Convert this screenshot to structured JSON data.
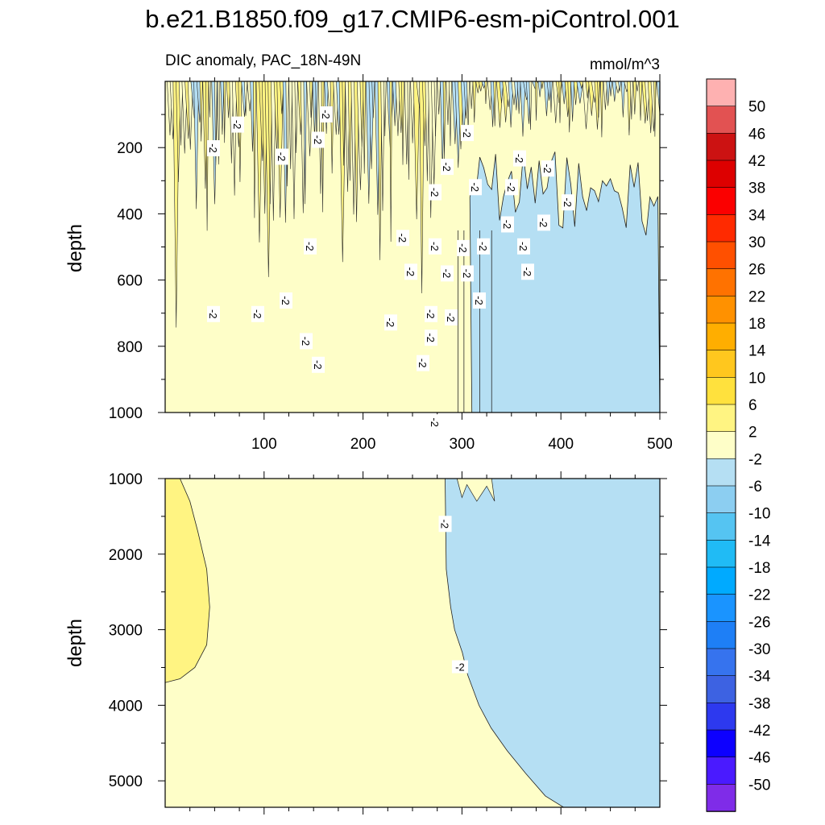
{
  "chart_data": [
    {
      "type": "contour",
      "title": "b.e21.B1850.f09_g17.CMIP6-esm-piControl.001",
      "subtitle_left": "DIC anomaly, PAC_18N-49N",
      "subtitle_right": "mmol/m^3",
      "xlabel": "",
      "ylabel": "depth",
      "xlim": [
        0,
        500
      ],
      "ylim": [
        1000,
        0
      ],
      "x_ticks": [
        100,
        200,
        300,
        400,
        500
      ],
      "x_tick_labels": [
        "100",
        "200",
        "300",
        "400",
        "500"
      ],
      "y_ticks": [
        200,
        400,
        600,
        800,
        1000
      ],
      "y_tick_labels": [
        "200",
        "400",
        "600",
        "800",
        "1000"
      ],
      "contour_label": "-2",
      "contour_label_count": 37,
      "regions": [
        {
          "level_range": "2 to 6",
          "description": "patchy positive anomalies in upper 300 m across most of record"
        },
        {
          "level_range": "-2 to 2",
          "description": "near-zero background dominating x=0..300 below ~300 m"
        },
        {
          "level_range": "-6 to -2",
          "description": "negative anomaly filling x>~310 below ~300 m"
        }
      ]
    },
    {
      "type": "contour",
      "xlabel": "",
      "ylabel": "depth",
      "xlim": [
        0,
        500
      ],
      "ylim": [
        1000,
        5350
      ],
      "y_ticks": [
        1000,
        2000,
        3000,
        4000,
        5000
      ],
      "y_tick_labels": [
        "1000",
        "2000",
        "3000",
        "4000",
        "5000"
      ],
      "contour_label": "-2",
      "contour_label_count": 2,
      "regions": [
        {
          "level_range": "2 to 6",
          "description": "positive lobe near x=0..45 between 1000 and 3700 m"
        },
        {
          "level_range": "-2 to 2",
          "description": "near-zero background on the left side"
        },
        {
          "level_range": "-6 to -2",
          "description": "negative anomaly from x~280 at 1000 m widening to x~400 at the bottom"
        }
      ]
    }
  ],
  "colorbar": {
    "labels": [
      "50",
      "46",
      "42",
      "38",
      "34",
      "30",
      "26",
      "22",
      "18",
      "14",
      "10",
      "6",
      "2",
      "-2",
      "-6",
      "-10",
      "-14",
      "-18",
      "-22",
      "-26",
      "-30",
      "-34",
      "-38",
      "-42",
      "-46",
      "-50"
    ],
    "colors": [
      "#feb1b1",
      "#e25252",
      "#cc1212",
      "#dd0000",
      "#fb0000",
      "#ff2a00",
      "#ff5000",
      "#ff7200",
      "#ff9100",
      "#ffae00",
      "#ffc71e",
      "#ffe13d",
      "#fff482",
      "#fefec8",
      "#b5dff3",
      "#8ccef1",
      "#55c4f2",
      "#20bbf5",
      "#00aaff",
      "#1a94ff",
      "#1e7ff6",
      "#3673ee",
      "#3d62e2",
      "#2d39ef",
      "#0d00ff",
      "#4a1aff",
      "#7f2ce8"
    ]
  }
}
